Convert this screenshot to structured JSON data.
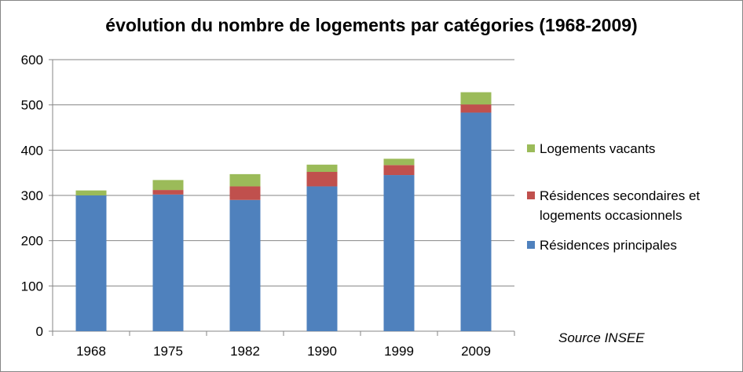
{
  "chart_data": {
    "type": "bar",
    "stacked": true,
    "title": "évolution du nombre de logements par catégories (1968-2009)",
    "categories": [
      "1968",
      "1975",
      "1982",
      "1990",
      "1999",
      "2009"
    ],
    "series": [
      {
        "name": "Résidences principales",
        "values": [
          300,
          302,
          290,
          320,
          345,
          483
        ],
        "color": "#4F81BD"
      },
      {
        "name": "Résidences secondaires et logements occasionnels",
        "values": [
          0,
          10,
          30,
          32,
          22,
          18
        ],
        "color": "#C0504D"
      },
      {
        "name": "Logements vacants",
        "values": [
          11,
          22,
          27,
          16,
          14,
          27
        ],
        "color": "#9BBB59"
      }
    ],
    "ylim": [
      0,
      600
    ],
    "yticks": [
      "0",
      "100",
      "200",
      "300",
      "400",
      "500",
      "600"
    ],
    "grid": true,
    "legend_position": "right"
  },
  "legend": {
    "vacants": "Logements vacants",
    "secondaires_line1": "Résidences secondaires et",
    "secondaires_line2": "logements occasionnels",
    "principales": "Résidences principales"
  },
  "source_note": "Source INSEE"
}
